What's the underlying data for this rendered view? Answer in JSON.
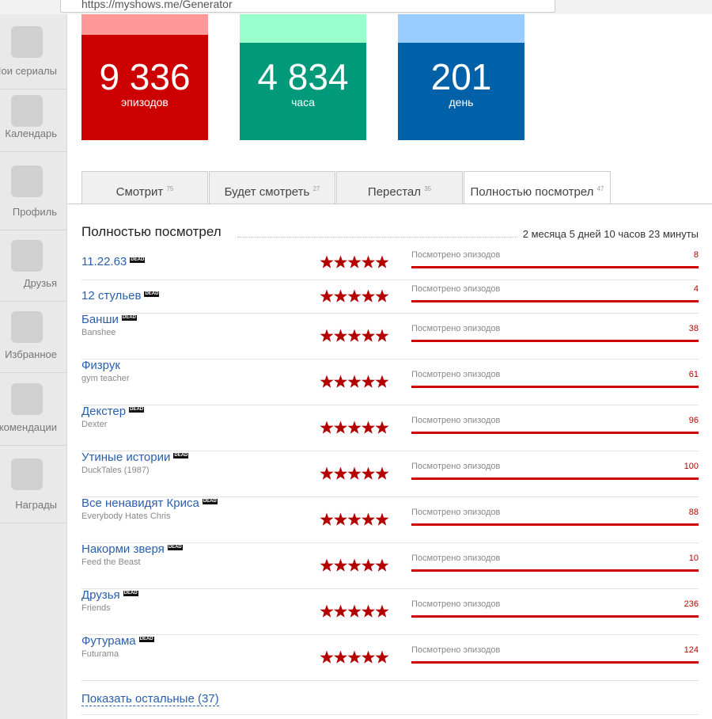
{
  "browser": {
    "url": "https://myshows.me/Generator"
  },
  "sidebar": [
    "Мои сериалы",
    "Календарь",
    "Профиль",
    "Друзья",
    "Избранное",
    "Рекомендации",
    "Награды"
  ],
  "stats": [
    {
      "value": "9 336",
      "label": "эпизодов"
    },
    {
      "value": "4 834",
      "label": "часа"
    },
    {
      "value": "201",
      "label": "день"
    }
  ],
  "tabs": [
    {
      "label": "Смотрит",
      "count": 75
    },
    {
      "label": "Будет смотреть",
      "count": 27
    },
    {
      "label": "Перестал",
      "count": 35
    },
    {
      "label": "Полностью посмотрел",
      "count": 47
    }
  ],
  "section": {
    "title": "Полностью посмотрел",
    "duration": "2 месяца 5 дней 10 часов 23 минуты"
  },
  "shows": [
    {
      "title": "11.22.63",
      "badge": "DEAD",
      "rating": 5,
      "progress_label": "Посмотрено эпизодов",
      "episodes": 8
    },
    {
      "title": "12 стульев",
      "badge": "DEAD",
      "rating": 5,
      "progress_label": "Посмотрено эпизодов",
      "episodes": 4
    },
    {
      "title": "Банши",
      "original": "Banshee",
      "badge": "DEAD",
      "rating": 5,
      "progress_label": "Посмотрено эпизодов",
      "episodes": 38
    },
    {
      "title": "Физрук",
      "original": "gym teacher",
      "rating": 5,
      "progress_label": "Посмотрено эпизодов",
      "episodes": 61
    },
    {
      "title": "Декстер",
      "original": "Dexter",
      "badge": "DEAD",
      "rating": 5,
      "progress_label": "Посмотрено эпизодов",
      "episodes": 96
    },
    {
      "title": "Утиные истории",
      "original": "DuckTales (1987)",
      "badge": "DEAD",
      "rating": 5,
      "progress_label": "Посмотрено эпизодов",
      "episodes": 100
    },
    {
      "title": "Все ненавидят Криса",
      "original": "Everybody Hates Chris",
      "badge": "DEAD",
      "rating": 5,
      "progress_label": "Посмотрено эпизодов",
      "episodes": 88
    },
    {
      "title": "Накорми зверя",
      "original": "Feed the Beast",
      "badge": "DEAD",
      "rating": 5,
      "progress_label": "Посмотрено эпизодов",
      "episodes": 10
    },
    {
      "title": "Друзья",
      "original": "Friends",
      "badge": "DEAD",
      "rating": 5,
      "progress_label": "Посмотрено эпизодов",
      "episodes": 236
    },
    {
      "title": "Футурама",
      "original": "Futurama",
      "badge": "DEAD",
      "rating": 5,
      "progress_label": "Посмотрено эпизодов",
      "episodes": 124
    }
  ],
  "show_more": "Показать остальные (37)"
}
